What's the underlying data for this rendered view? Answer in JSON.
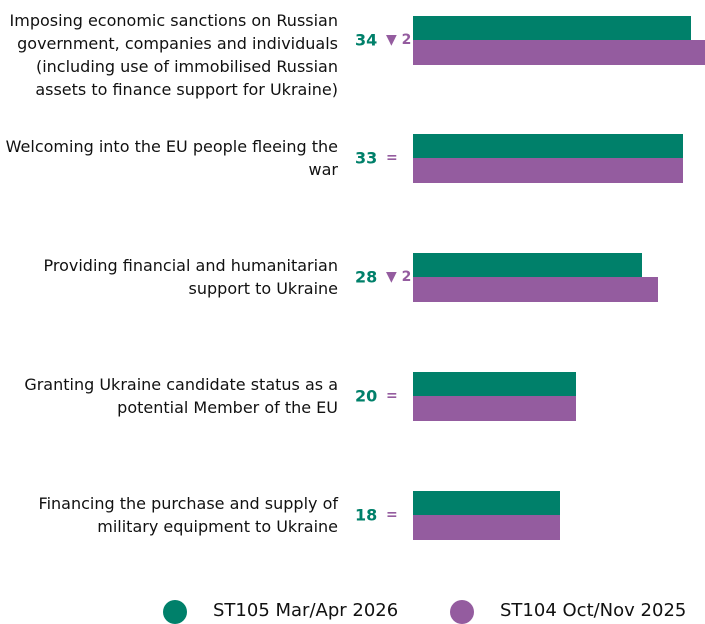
{
  "chart_data": {
    "type": "bar",
    "orientation": "horizontal",
    "categories": [
      "Imposing economic sanctions on Russian government, companies and individuals (including use of immobilised Russian assets to finance support for Ukraine)",
      "Welcoming into the EU people fleeing the war",
      "Providing financial and humanitarian support to Ukraine",
      "Granting Ukraine candidate status as a potential Member of the EU",
      "Financing the purchase and supply of military equipment to Ukraine"
    ],
    "series": [
      {
        "name": "ST105 Mar/Apr 2026",
        "color": "#00806a",
        "values": [
          34,
          33,
          28,
          20,
          18
        ]
      },
      {
        "name": "ST104 Oct/Nov 2025",
        "color": "#945c9f",
        "values": [
          36,
          33,
          30,
          20,
          18
        ]
      }
    ],
    "change_labels": [
      "▼ 2",
      "=",
      "▼ 2",
      "=",
      "="
    ]
  }
}
